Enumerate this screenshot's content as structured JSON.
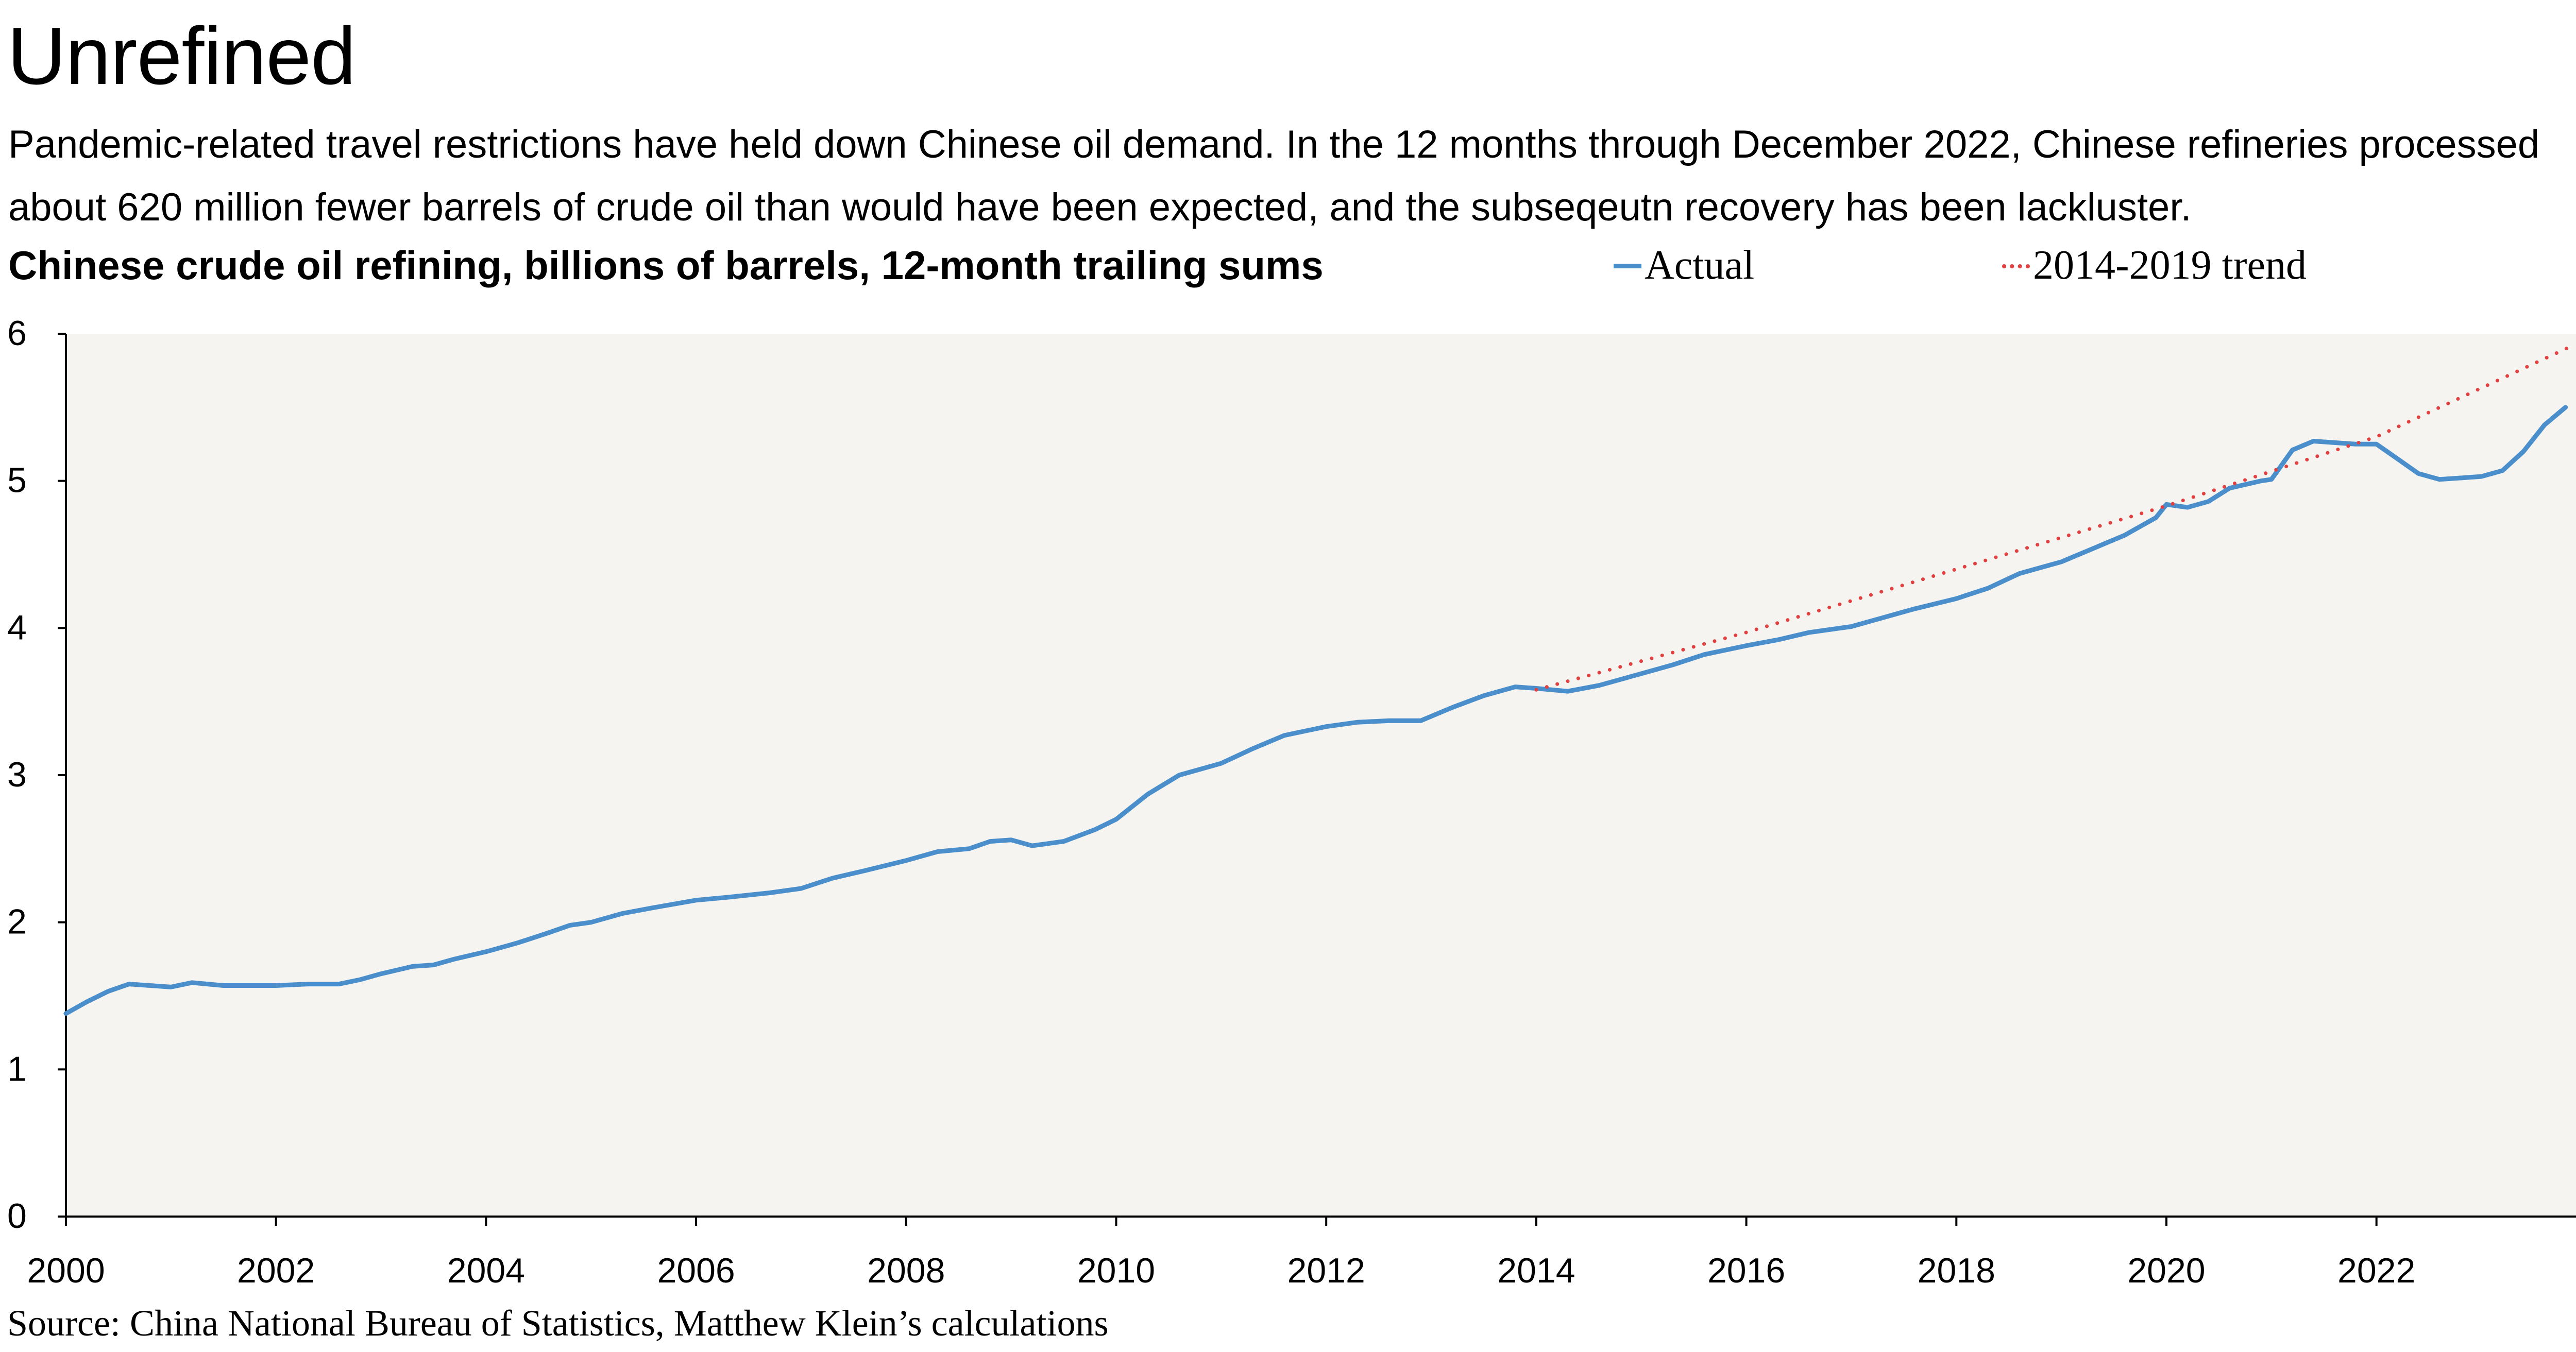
{
  "title": "Unrefined",
  "subtitle": "Pandemic-related travel restrictions have held down Chinese oil demand. In the 12 months through December 2022, Chinese refineries processed about 620 million fewer barrels of crude oil than would have been expected, and the subseqeutn recovery has been lackluster.",
  "chart_label": "Chinese crude oil refining, billions of barrels, 12-month trailing sums",
  "source": "Source: China National Bureau of Statistics, Matthew Klein’s calculations",
  "colors": {
    "actual": "#4a8fcb",
    "trend": "#e04040",
    "plot_bg": "#f5f4f0"
  },
  "chart_data": {
    "type": "line",
    "title": "Chinese crude oil refining, billions of barrels, 12-month trailing sums",
    "xlabel": "",
    "ylabel": "",
    "xlim": [
      2000,
      2023.9
    ],
    "ylim": [
      0,
      6
    ],
    "x_ticks": [
      2000,
      2002,
      2004,
      2006,
      2008,
      2010,
      2012,
      2014,
      2016,
      2018,
      2020,
      2022
    ],
    "x_tick_labels": [
      "2000",
      "2002",
      "2004",
      "2006",
      "2008",
      "2010",
      "2012",
      "2014",
      "2016",
      "2018",
      "2020",
      "2022"
    ],
    "y_ticks": [
      0,
      1,
      2,
      3,
      4,
      5,
      6
    ],
    "y_tick_labels": [
      "0",
      "1",
      "2",
      "3",
      "4",
      "5",
      "6"
    ],
    "grid": false,
    "legend": "top",
    "series": [
      {
        "name": "Actual",
        "style": "solid",
        "x": [
          2000.0,
          2000.2,
          2000.4,
          2000.6,
          2000.8,
          2001.0,
          2001.2,
          2001.5,
          2001.7,
          2002.0,
          2002.3,
          2002.6,
          2002.8,
          2003.0,
          2003.3,
          2003.5,
          2003.7,
          2004.0,
          2004.3,
          2004.6,
          2004.8,
          2005.0,
          2005.3,
          2005.6,
          2006.0,
          2006.3,
          2006.7,
          2007.0,
          2007.3,
          2007.6,
          2008.0,
          2008.3,
          2008.6,
          2008.8,
          2009.0,
          2009.2,
          2009.5,
          2009.8,
          2010.0,
          2010.3,
          2010.6,
          2011.0,
          2011.3,
          2011.6,
          2012.0,
          2012.3,
          2012.6,
          2012.9,
          2013.2,
          2013.5,
          2013.8,
          2014.0,
          2014.3,
          2014.6,
          2015.0,
          2015.3,
          2015.6,
          2016.0,
          2016.3,
          2016.6,
          2017.0,
          2017.3,
          2017.6,
          2018.0,
          2018.3,
          2018.6,
          2019.0,
          2019.3,
          2019.6,
          2019.9,
          2020.0,
          2020.2,
          2020.4,
          2020.6,
          2020.9,
          2021.0,
          2021.2,
          2021.4,
          2021.6,
          2021.8,
          2022.0,
          2022.2,
          2022.4,
          2022.6,
          2022.8,
          2023.0,
          2023.2,
          2023.4,
          2023.6,
          2023.8
        ],
        "values": [
          1.38,
          1.46,
          1.53,
          1.58,
          1.57,
          1.56,
          1.59,
          1.57,
          1.57,
          1.57,
          1.58,
          1.58,
          1.61,
          1.65,
          1.7,
          1.71,
          1.75,
          1.8,
          1.86,
          1.93,
          1.98,
          2.0,
          2.06,
          2.1,
          2.15,
          2.17,
          2.2,
          2.23,
          2.3,
          2.35,
          2.42,
          2.48,
          2.5,
          2.55,
          2.56,
          2.52,
          2.55,
          2.63,
          2.7,
          2.87,
          3.0,
          3.08,
          3.18,
          3.27,
          3.33,
          3.36,
          3.37,
          3.37,
          3.46,
          3.54,
          3.6,
          3.59,
          3.57,
          3.61,
          3.69,
          3.75,
          3.82,
          3.88,
          3.92,
          3.97,
          4.01,
          4.07,
          4.13,
          4.2,
          4.27,
          4.37,
          4.45,
          4.54,
          4.63,
          4.75,
          4.84,
          4.82,
          4.86,
          4.95,
          5.0,
          5.01,
          5.21,
          5.27,
          5.26,
          5.25,
          5.25,
          5.15,
          5.05,
          5.01,
          5.02,
          5.03,
          5.07,
          5.2,
          5.38,
          5.5
        ]
      },
      {
        "name": "2014-2019 trend",
        "style": "dotted",
        "x": [
          2014.0,
          2016.0,
          2018.0,
          2020.0,
          2022.0,
          2023.9
        ],
        "values": [
          3.58,
          3.97,
          4.4,
          4.83,
          5.3,
          5.93
        ]
      }
    ]
  }
}
